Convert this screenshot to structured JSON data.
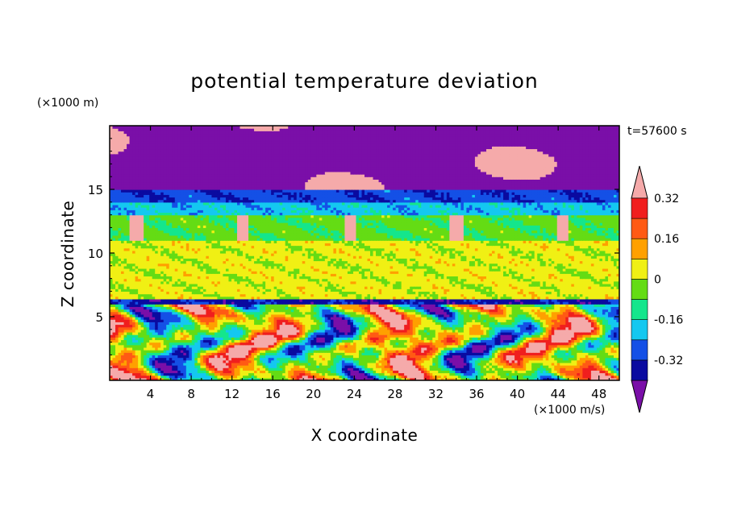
{
  "chart_data": {
    "type": "heatmap",
    "title": "potential temperature deviation",
    "xlabel": "X coordinate",
    "ylabel": "Z coordinate",
    "x_unit": "(×1000 m/s)",
    "y_unit": "(×1000 m)",
    "timestamp": "t=57600 s",
    "xlim": [
      0,
      50
    ],
    "ylim": [
      0,
      20
    ],
    "x_ticks": [
      4,
      8,
      12,
      16,
      20,
      24,
      28,
      32,
      36,
      40,
      44,
      48
    ],
    "y_ticks": [
      5,
      10,
      15
    ],
    "colorbar": {
      "levels": [
        -0.4,
        -0.32,
        -0.24,
        -0.16,
        -0.08,
        0,
        0.08,
        0.16,
        0.24,
        0.32,
        0.4
      ],
      "tick_labels": [
        "-0.32",
        "-0.16",
        "0",
        "0.16",
        "0.32"
      ],
      "tick_values": [
        -0.32,
        -0.16,
        0,
        0.16,
        0.32
      ],
      "colors": [
        "#7a0fa8",
        "#0a0aa0",
        "#1450e6",
        "#14c8f0",
        "#14e68c",
        "#64dc14",
        "#f0f014",
        "#ffa000",
        "#ff5a14",
        "#f01e1e",
        "#f5aaaa"
      ],
      "extend": "both"
    },
    "layers": [
      {
        "z_range": [
          15,
          20
        ],
        "description": "cool purple layer with warm pink patches",
        "value": -0.4
      },
      {
        "z_range": [
          14,
          15
        ],
        "value": -0.3
      },
      {
        "z_range": [
          13,
          14
        ],
        "value": -0.2
      },
      {
        "z_range": [
          11,
          13
        ],
        "value": -0.06
      },
      {
        "z_range": [
          6.5,
          11
        ],
        "value": 0.03
      },
      {
        "z_range": [
          6,
          6.5
        ],
        "value": -0.35
      },
      {
        "z_range": [
          0,
          6
        ],
        "description": "turbulent convective boundary layer",
        "value_range": [
          -0.4,
          0.4
        ]
      }
    ]
  }
}
